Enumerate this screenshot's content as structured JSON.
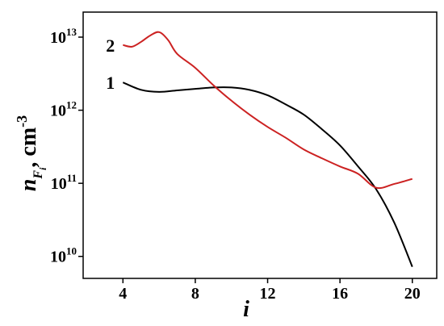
{
  "chart_data": {
    "type": "line",
    "x_label": "i",
    "y_label": {
      "base": "n",
      "sub": "F",
      "subsub": "i",
      "unit": ", cm",
      "unit_exp": "-3"
    },
    "log_y": true,
    "xlim": [
      1.8,
      21.35
    ],
    "ylim": [
      5000000000.0,
      22000000000000.0
    ],
    "xticks": [
      4,
      8,
      12,
      16,
      20
    ],
    "yticks": [
      {
        "value": 10000000000.0,
        "label": "10",
        "exponent": "10"
      },
      {
        "value": 100000000000.0,
        "label": "10",
        "exponent": "11"
      },
      {
        "value": 1000000000000.0,
        "label": "10",
        "exponent": "12"
      },
      {
        "value": 10000000000000.0,
        "label": "10",
        "exponent": "13"
      }
    ],
    "series": [
      {
        "name": "1",
        "color": "#000000",
        "x": [
          4,
          5,
          6,
          7,
          8,
          9,
          10,
          11,
          12,
          13,
          14,
          15,
          16,
          17,
          18,
          19,
          20
        ],
        "values": [
          2400000000000.0,
          1900000000000.0,
          1780000000000.0,
          1870000000000.0,
          1960000000000.0,
          2050000000000.0,
          2050000000000.0,
          1900000000000.0,
          1600000000000.0,
          1200000000000.0,
          870000000000.0,
          550000000000.0,
          330000000000.0,
          170000000000.0,
          83000000000.0,
          29000000000.0,
          7200000000.0
        ]
      },
      {
        "name": "2",
        "color": "#cc2222",
        "x": [
          4,
          4.5,
          5,
          5.5,
          6,
          6.5,
          7,
          8,
          9,
          10,
          11,
          12,
          13,
          14,
          15,
          16,
          17,
          18,
          19,
          20
        ],
        "values": [
          7800000000000.0,
          7400000000000.0,
          8600000000000.0,
          10500000000000.0,
          11700000000000.0,
          9100000000000.0,
          5900000000000.0,
          3800000000000.0,
          2200000000000.0,
          1350000000000.0,
          870000000000.0,
          590000000000.0,
          420000000000.0,
          290000000000.0,
          220000000000.0,
          170000000000.0,
          135000000000.0,
          87000000000.0,
          98000000000.0,
          115000000000.0
        ]
      }
    ]
  }
}
